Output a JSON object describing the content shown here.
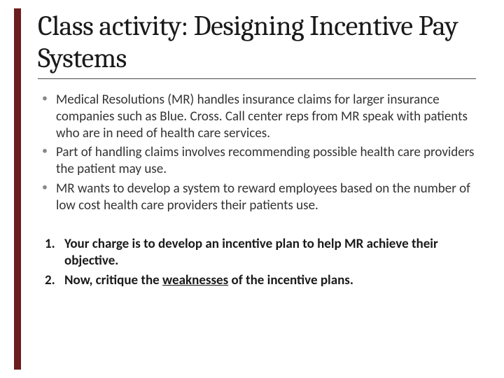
{
  "slide": {
    "title": "Class activity: Designing Incentive Pay Systems",
    "accent_color": "#6b1e1e",
    "background_color": "#ffffff",
    "title_fontsize": 40,
    "body_fontsize": 19,
    "title_font": "Cambria",
    "body_font": "Calibri",
    "bullets": [
      "Medical Resolutions (MR) handles insurance claims for larger insurance companies such as Blue. Cross.  Call center reps from MR speak with patients who are in need of health care services.",
      "Part of handling claims involves recommending possible health care providers the patient may use.",
      "MR wants to develop a system to reward employees based on the number of low cost health care providers their patients use."
    ],
    "numbered": [
      {
        "prefix": "Your charge is to develop an incentive plan to help MR achieve their objective.",
        "underline_word": ""
      },
      {
        "prefix": "Now, critique the ",
        "underline_word": "weaknesses",
        "suffix": " of the incentive plans."
      }
    ]
  }
}
